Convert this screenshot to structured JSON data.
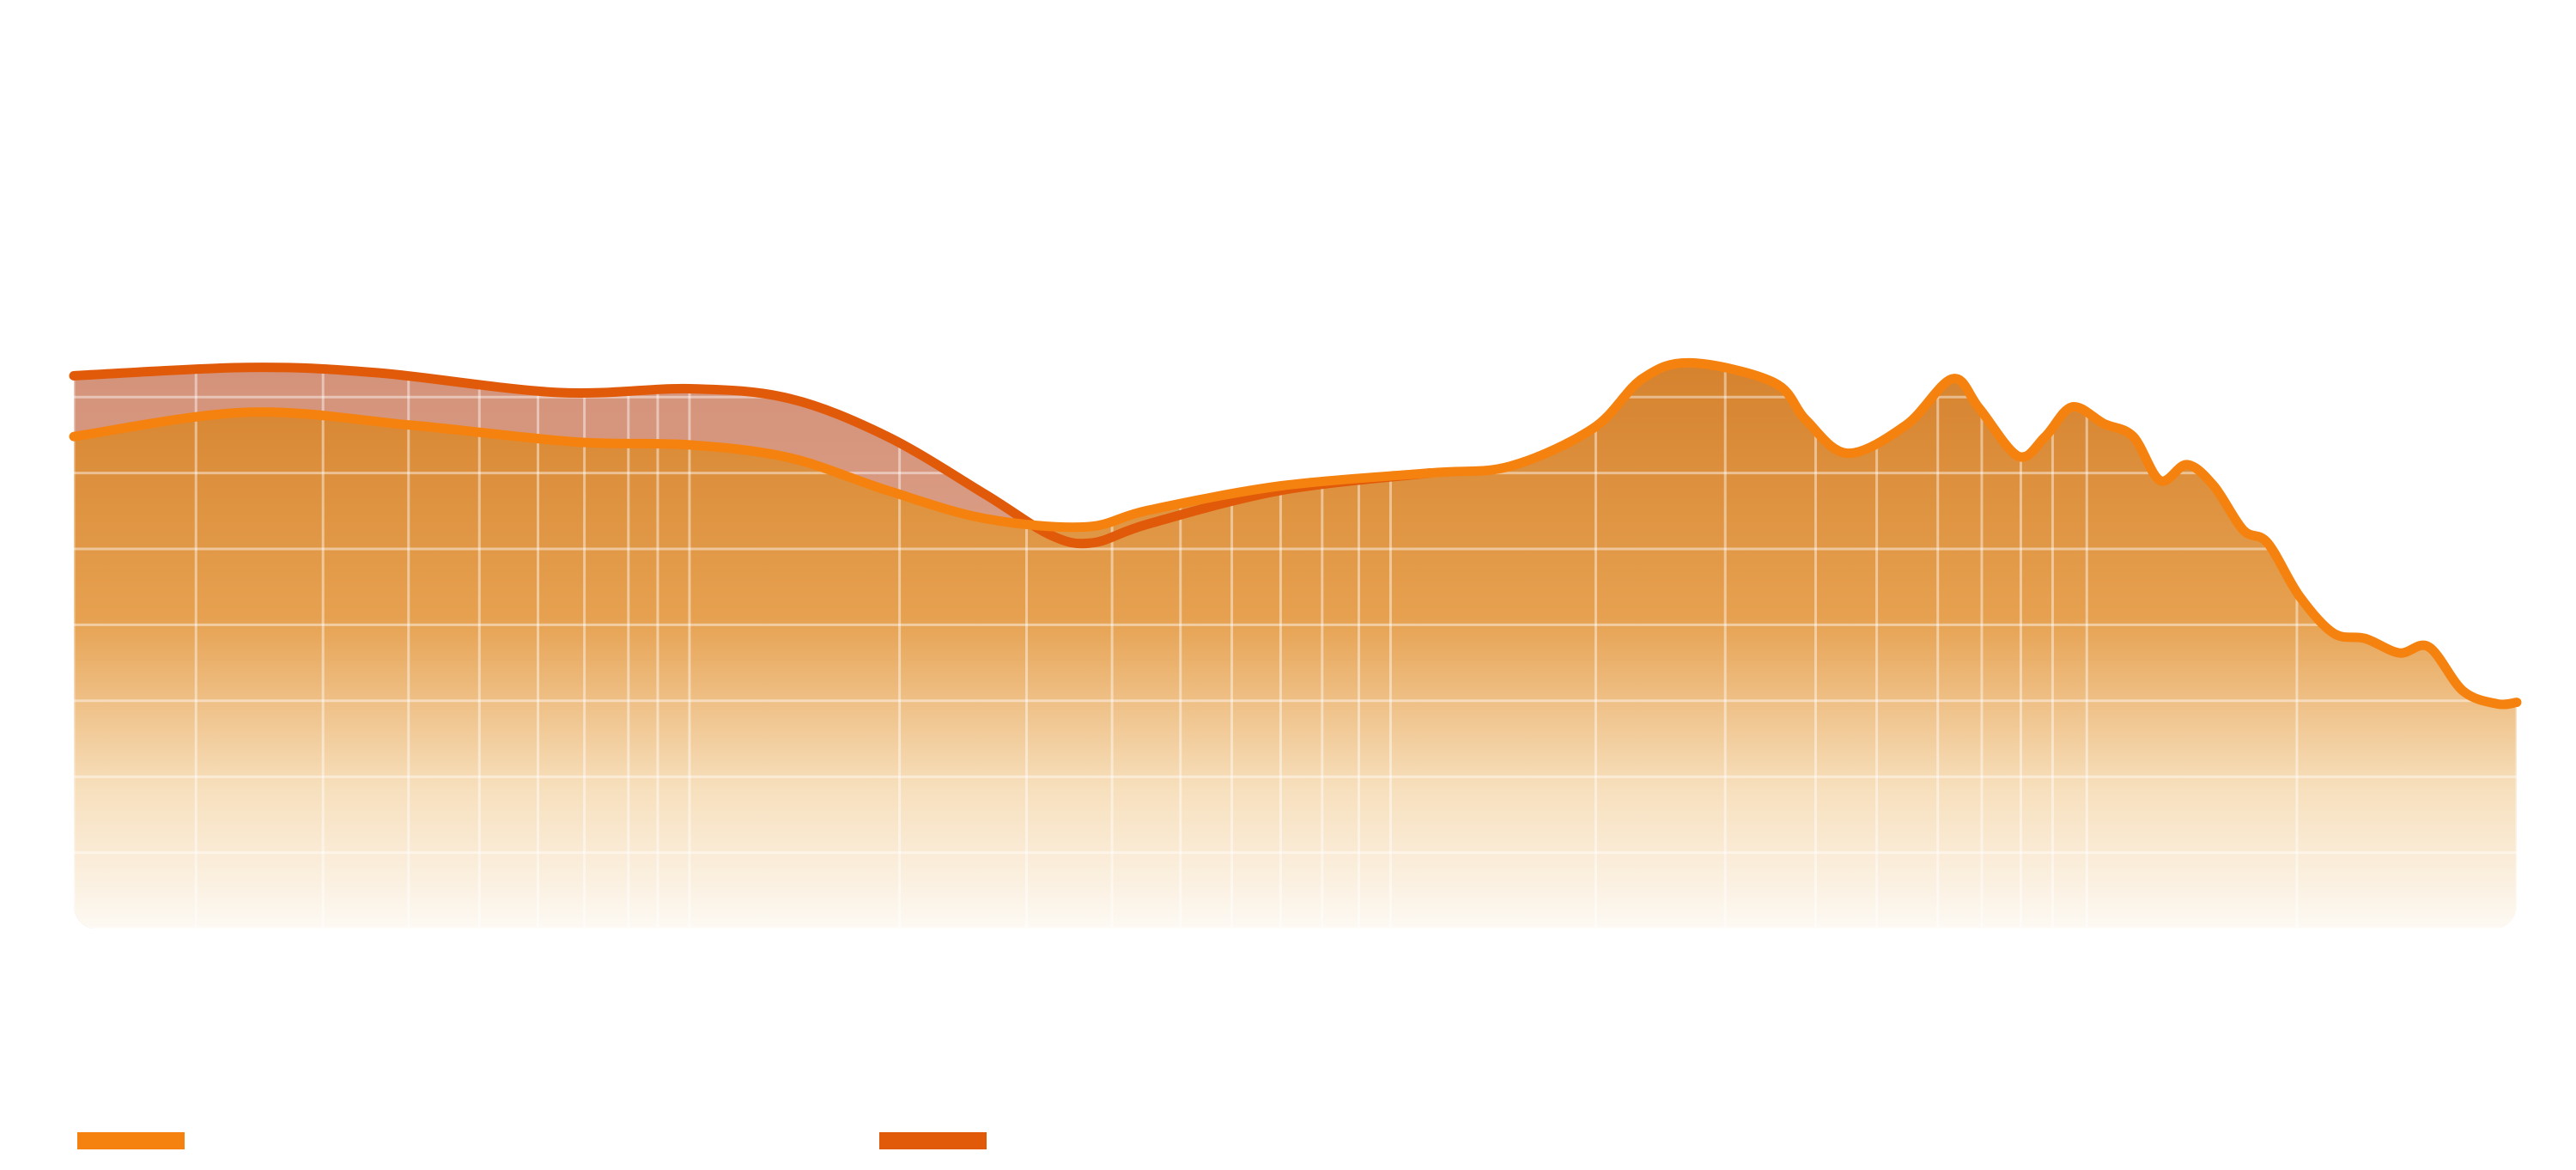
{
  "chart_data": {
    "type": "area",
    "xlim": [
      0,
      100
    ],
    "ylim": [
      0,
      100
    ],
    "xticks": [
      0,
      5.0,
      10.2,
      13.7,
      16.6,
      19.0,
      20.9,
      22.7,
      23.9,
      25.2,
      33.8,
      39.0,
      42.5,
      45.3,
      47.4,
      49.4,
      51.1,
      52.6,
      53.9,
      62.3,
      67.6,
      71.3,
      73.8,
      76.3,
      78.1,
      79.7,
      81.0,
      82.4,
      91.0,
      100
    ],
    "yticks": [
      0,
      10,
      20,
      30,
      40,
      50,
      60,
      70
    ],
    "grid": true,
    "series": [
      {
        "color": "#f5820f",
        "x": [
          0,
          7.1,
          13.8,
          20.5,
          25.2,
          29.3,
          33.3,
          37.3,
          41.4,
          44.0,
          49.4,
          55.5,
          58.8,
          62.2,
          64.2,
          66.2,
          69.6,
          70.9,
          72.6,
          75.0,
          76.9,
          78.0,
          79.6,
          80.7,
          81.8,
          83.1,
          84.3,
          85.4,
          86.5,
          87.6,
          88.8,
          89.8,
          91.1,
          92.5,
          93.8,
          95.2,
          96.4,
          97.8,
          99.2,
          100
        ],
        "values": [
          64.8,
          68.0,
          66.3,
          64.1,
          63.7,
          62.0,
          57.7,
          54.0,
          52.9,
          55.1,
          58.3,
          60.0,
          60.9,
          65.9,
          72.4,
          74.5,
          71.9,
          67.0,
          62.6,
          66.3,
          72.4,
          68.5,
          62.2,
          64.8,
          68.7,
          66.5,
          64.8,
          59.0,
          61.1,
          58.3,
          52.5,
          50.8,
          43.8,
          38.9,
          38.2,
          36.3,
          37.1,
          31.3,
          29.6,
          29.8
        ]
      },
      {
        "color": "#e05a0a",
        "x": [
          0,
          7.1,
          12.4,
          19.8,
          25.2,
          29.3,
          33.3,
          37.3,
          40.0,
          41.7,
          44.0,
          49.4,
          55.5
        ],
        "values": [
          72.8,
          73.9,
          73.2,
          70.6,
          71.1,
          69.8,
          64.8,
          57.2,
          51.8,
          50.8,
          53.3,
          57.7,
          60.0
        ]
      }
    ]
  }
}
